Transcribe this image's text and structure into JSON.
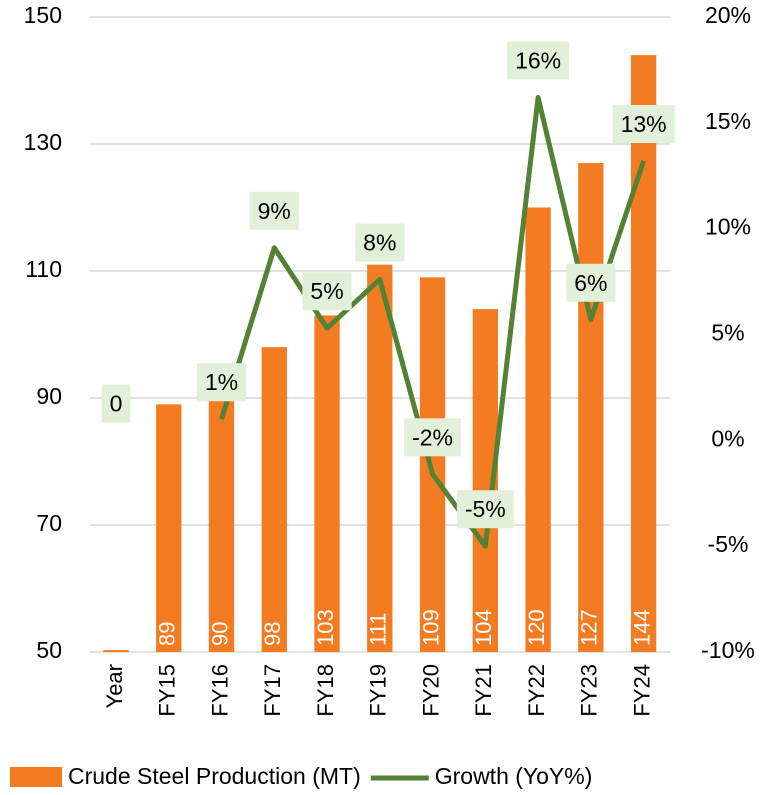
{
  "chart_data": {
    "type": "bar_line",
    "categories": [
      "Year",
      "FY15",
      "FY16",
      "FY17",
      "FY18",
      "FY19",
      "FY20",
      "FY21",
      "FY22",
      "FY23",
      "FY24"
    ],
    "series": [
      {
        "name": "Crude Steel Production (MT)",
        "color": "#f37b21",
        "type": "bar",
        "values": [
          50.3,
          89,
          90,
          98,
          103,
          111,
          109,
          104,
          120,
          127,
          144
        ],
        "value_labels": [
          null,
          "89",
          "90",
          "98",
          "103",
          "111",
          "109",
          "104",
          "120",
          "127",
          "144"
        ]
      },
      {
        "name": "Growth (YoY%)",
        "color": "#548235",
        "type": "line",
        "axis": "y2",
        "values": [
          0,
          null,
          1,
          9.1,
          5.3,
          7.6,
          -1.6,
          -5,
          16.2,
          5.7,
          13.2
        ],
        "value_labels": [
          "0",
          null,
          "1%",
          "9%",
          "5%",
          "8%",
          "-2%",
          "-5%",
          "16%",
          "6%",
          "13%"
        ]
      }
    ],
    "ylim": [
      50,
      150
    ],
    "yticks": [
      50,
      70,
      90,
      110,
      130,
      150
    ],
    "y2lim": [
      -10,
      20
    ],
    "y2ticks": [
      {
        "value": -10,
        "label": "-10%"
      },
      {
        "value": -5,
        "label": "-5%"
      },
      {
        "value": 0,
        "label": "0%"
      },
      {
        "value": 5,
        "label": "5%"
      },
      {
        "value": 10,
        "label": "10%"
      },
      {
        "value": 15,
        "label": "15%"
      },
      {
        "value": 20,
        "label": "20%"
      }
    ],
    "grid": true,
    "legend": "bottom"
  }
}
